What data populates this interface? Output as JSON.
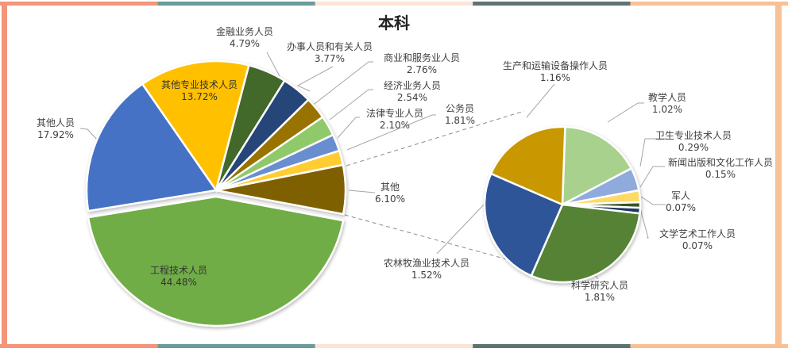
{
  "chart_data": [
    {
      "type": "pie",
      "title": "本科",
      "subtitle": "",
      "categories": [
        "其他专业技术人员",
        "金融业务人员",
        "办事人员和有关人员",
        "商业和服务业人员",
        "经济业务人员",
        "法律专业人员",
        "公务员",
        "其他",
        "工程技术人员",
        "其他人员"
      ],
      "values": [
        13.72,
        4.79,
        3.77,
        2.76,
        2.54,
        2.1,
        1.81,
        6.1,
        44.48,
        17.92
      ],
      "labels": [
        "13.72%",
        "4.79%",
        "3.77%",
        "2.76%",
        "2.54%",
        "2.10%",
        "1.81%",
        "6.10%",
        "44.48%",
        "17.92%"
      ],
      "colors": [
        "#FFC000",
        "#43682B",
        "#264478",
        "#997300",
        "#8FC96B",
        "#698ED0",
        "#FFCD33",
        "#7F6000",
        "#70AD47",
        "#4472C4"
      ],
      "exploded": [
        "工程技术人员"
      ],
      "legend": "none"
    },
    {
      "type": "pie",
      "title": "其他 (6.10%) breakdown",
      "categories": [
        "教学人员",
        "卫生专业技术人员",
        "新闻出版和文化工作人员",
        "军人",
        "文学艺术工作人员",
        "科学研究人员",
        "农林牧渔业技术人员",
        "生产和运输设备操作人员"
      ],
      "values": [
        1.02,
        0.29,
        0.15,
        0.07,
        0.07,
        1.81,
        1.52,
        1.16
      ],
      "labels": [
        "1.02%",
        "0.29%",
        "0.15%",
        "0.07%",
        "0.07%",
        "1.81%",
        "1.52%",
        "1.16%"
      ],
      "colors": [
        "#A9D18E",
        "#8FAADC",
        "#FFD966",
        "#375623",
        "#1F3864",
        "#548235",
        "#2F5597",
        "#C99700"
      ],
      "legend": "none"
    }
  ],
  "frame": {
    "border_colors": [
      "#F4957A",
      "#6A9C9C",
      "#FBE5D6",
      "#5F7373",
      "#F8C095"
    ]
  },
  "labels_left": [
    {
      "name": "金融业务人员",
      "pct": "4.79%"
    },
    {
      "name": "办事人员和有关人员",
      "pct": "3.77%"
    },
    {
      "name": "商业和服务业人员",
      "pct": "2.76%"
    },
    {
      "name": "经济业务人员",
      "pct": "2.54%"
    },
    {
      "name": "法律专业人员",
      "pct": "2.10%"
    },
    {
      "name": "公务员",
      "pct": "1.81%"
    },
    {
      "name": "其他",
      "pct": "6.10%"
    },
    {
      "name": "其他人员",
      "pct": "17.92%"
    },
    {
      "name": "其他专业技术人员",
      "pct": "13.72%"
    },
    {
      "name": "工程技术人员",
      "pct": "44.48%"
    }
  ],
  "labels_right": [
    {
      "name": "生产和运输设备操作人员",
      "pct": "1.16%"
    },
    {
      "name": "教学人员",
      "pct": "1.02%"
    },
    {
      "name": "卫生专业技术人员",
      "pct": "0.29%"
    },
    {
      "name": "新闻出版和文化工作人员",
      "pct": "0.15%"
    },
    {
      "name": "军人",
      "pct": "0.07%"
    },
    {
      "name": "文学艺术工作人员",
      "pct": "0.07%"
    },
    {
      "name": "农林牧渔业技术人员",
      "pct": "1.52%"
    },
    {
      "name": "科学研究人员",
      "pct": "1.81%"
    }
  ]
}
